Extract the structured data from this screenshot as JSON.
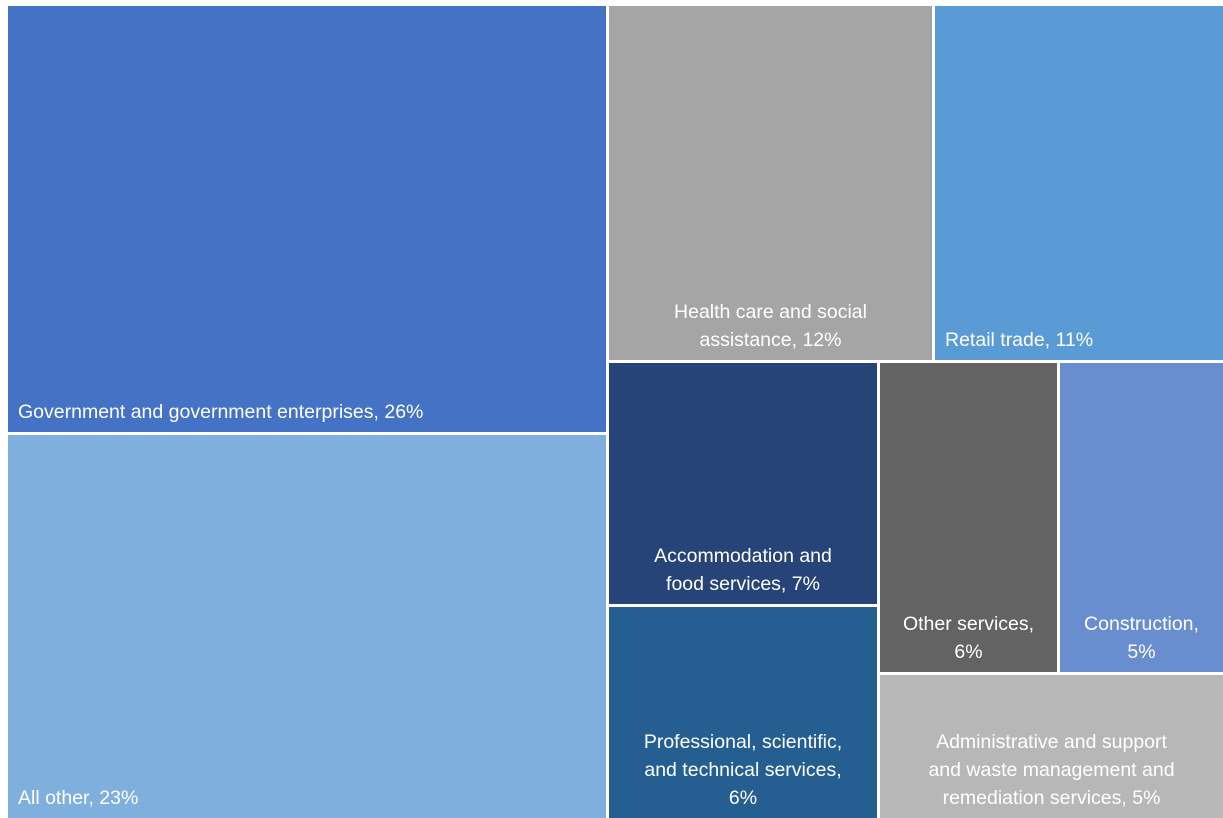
{
  "chart_data": {
    "type": "treemap",
    "unit": "%",
    "items": [
      {
        "key": "government",
        "label": "Government and government enterprises, 26%",
        "category": "Government and government enterprises",
        "value": 26,
        "color": "#4472C4"
      },
      {
        "key": "all_other",
        "label": "All other, 23%",
        "category": "All other",
        "value": 23,
        "color": "#7FAFDD"
      },
      {
        "key": "health_care",
        "label": "Health care and social\nassistance, 12%",
        "category": "Health care and social assistance",
        "value": 12,
        "color": "#A5A5A5"
      },
      {
        "key": "retail",
        "label": "Retail trade, 11%",
        "category": "Retail trade",
        "value": 11,
        "color": "#5B9BD5"
      },
      {
        "key": "accommodation",
        "label": "Accommodation and\nfood services, 7%",
        "category": "Accommodation and food services",
        "value": 7,
        "color": "#264478"
      },
      {
        "key": "professional",
        "label": "Professional, scientific,\nand technical services,\n6%",
        "category": "Professional, scientific, and technical services",
        "value": 6,
        "color": "#255E91"
      },
      {
        "key": "other_services",
        "label": "Other services,\n6%",
        "category": "Other services",
        "value": 6,
        "color": "#636363"
      },
      {
        "key": "construction",
        "label": "Construction,\n5%",
        "category": "Construction",
        "value": 5,
        "color": "#698ED0"
      },
      {
        "key": "administrative",
        "label": "Administrative and support\nand waste management and\nremediation services, 5%",
        "category": "Administrative and support and waste management and remediation services",
        "value": 5,
        "color": "#B7B7B7"
      }
    ]
  }
}
